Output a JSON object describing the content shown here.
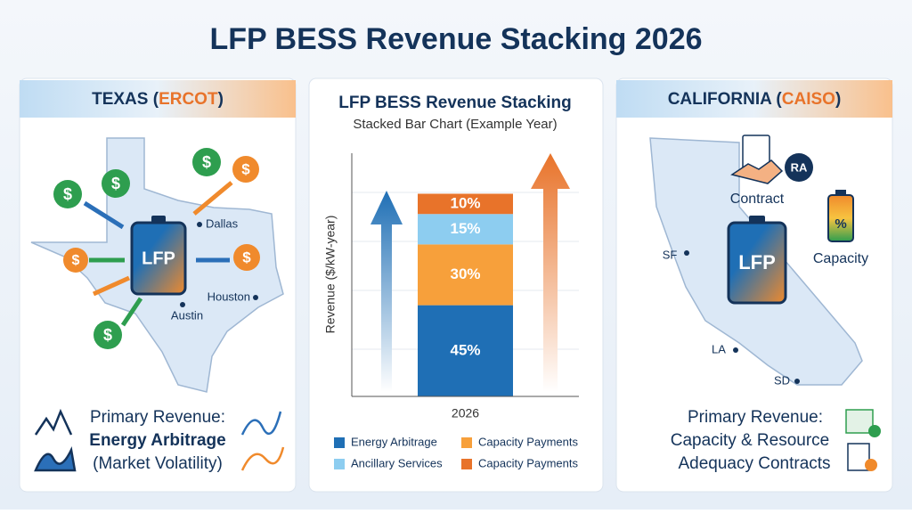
{
  "header": {
    "title": "LFP BESS Revenue Stacking 2026"
  },
  "texas": {
    "heading": {
      "prefix": "TEXAS (",
      "region": "ERCOT",
      "suffix": ")"
    },
    "battery": "LFP",
    "currency": "$",
    "cities": [
      "Dallas",
      "Houston",
      "Austin"
    ],
    "revenue": {
      "label": "Primary Revenue:",
      "focus": "Energy Arbitrage",
      "note": "(Market Volatility)"
    }
  },
  "california": {
    "heading": {
      "prefix": "CALIFORNIA (",
      "region": "CAISO",
      "suffix": ")"
    },
    "battery": "LFP",
    "contract": "Contract",
    "ra": "RA",
    "capacity": "Capacity",
    "percent": "%",
    "cities": [
      "SF",
      "LA",
      "SD"
    ],
    "revenue": {
      "label": "Primary Revenue:",
      "lines": [
        "Capacity & Resource",
        "Adequacy Contracts"
      ]
    }
  },
  "chart_data": {
    "type": "stacked_bar",
    "title": "LFP BESS Revenue Stacking",
    "subtitle": "Stacked Bar Chart (Example Year)",
    "y_label": "Revenue ($/kW-year)",
    "categories": [
      "2026"
    ],
    "ylim": [
      0,
      120
    ],
    "series": [
      {
        "name": "Energy Arbitrage",
        "color": "#1f6fb5",
        "values": [
          45
        ],
        "value_labels": [
          "45%"
        ]
      },
      {
        "name": "Capacity Payments",
        "color": "#f7a03b",
        "values": [
          30
        ],
        "value_labels": [
          "30%"
        ]
      },
      {
        "name": "Ancillary Services",
        "color": "#8dcdf0",
        "values": [
          15
        ],
        "value_labels": [
          "15%"
        ]
      },
      {
        "name": "Capacity Payments",
        "color": "#e8732a",
        "values": [
          10
        ],
        "value_labels": [
          "10%"
        ]
      }
    ]
  }
}
